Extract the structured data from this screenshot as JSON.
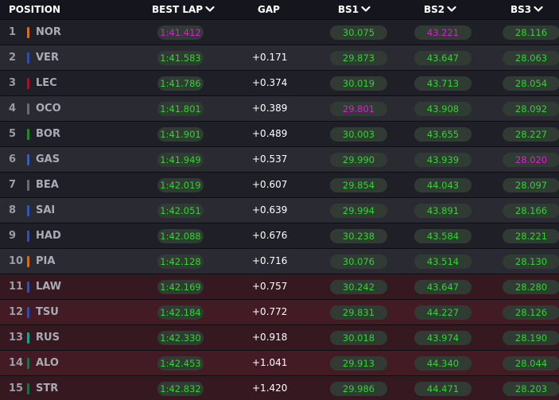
{
  "header": {
    "position": "POSITION",
    "best_lap": "BEST LAP",
    "gap": "GAP",
    "bs1": "BS1",
    "bs2": "BS2",
    "bs3": "BS3"
  },
  "colors": {
    "background": "#15151e",
    "personal_best": "#2ed62e",
    "overall_best": "#e11ad8",
    "eliminated_row": "#3a1820"
  },
  "rows": [
    {
      "pos": "1",
      "driver": "NOR",
      "team_color": "#d86d1f",
      "best_lap": "1:41.412",
      "gap": "",
      "bs1": "30.075",
      "bs2": "43.221",
      "bs3": "28.116",
      "eliminated": false,
      "purple": [
        "best_lap",
        "bs2"
      ]
    },
    {
      "pos": "2",
      "driver": "VER",
      "team_color": "#2f4fa8",
      "best_lap": "1:41.583",
      "gap": "+0.171",
      "bs1": "29.873",
      "bs2": "43.647",
      "bs3": "28.063",
      "eliminated": false,
      "purple": []
    },
    {
      "pos": "3",
      "driver": "LEC",
      "team_color": "#a1122b",
      "best_lap": "1:41.786",
      "gap": "+0.374",
      "bs1": "30.019",
      "bs2": "43.713",
      "bs3": "28.054",
      "eliminated": false,
      "purple": []
    },
    {
      "pos": "4",
      "driver": "OCO",
      "team_color": "#6a6a72",
      "best_lap": "1:41.801",
      "gap": "+0.389",
      "bs1": "29.801",
      "bs2": "43.908",
      "bs3": "28.092",
      "eliminated": false,
      "purple": [
        "bs1"
      ]
    },
    {
      "pos": "5",
      "driver": "BOR",
      "team_color": "#1f8a2e",
      "best_lap": "1:41.901",
      "gap": "+0.489",
      "bs1": "30.003",
      "bs2": "43.655",
      "bs3": "28.227",
      "eliminated": false,
      "purple": []
    },
    {
      "pos": "6",
      "driver": "GAS",
      "team_color": "#3b5fb0",
      "best_lap": "1:41.949",
      "gap": "+0.537",
      "bs1": "29.990",
      "bs2": "43.939",
      "bs3": "28.020",
      "eliminated": false,
      "purple": [
        "bs3"
      ]
    },
    {
      "pos": "7",
      "driver": "BEA",
      "team_color": "#6a6a72",
      "best_lap": "1:42.019",
      "gap": "+0.607",
      "bs1": "29.854",
      "bs2": "44.043",
      "bs3": "28.097",
      "eliminated": false,
      "purple": []
    },
    {
      "pos": "8",
      "driver": "SAI",
      "team_color": "#2f56b8",
      "best_lap": "1:42.051",
      "gap": "+0.639",
      "bs1": "29.994",
      "bs2": "43.891",
      "bs3": "28.166",
      "eliminated": false,
      "purple": []
    },
    {
      "pos": "9",
      "driver": "HAD",
      "team_color": "#3e4fa0",
      "best_lap": "1:42.088",
      "gap": "+0.676",
      "bs1": "30.238",
      "bs2": "43.584",
      "bs3": "28.221",
      "eliminated": false,
      "purple": []
    },
    {
      "pos": "10",
      "driver": "PIA",
      "team_color": "#d86d1f",
      "best_lap": "1:42.128",
      "gap": "+0.716",
      "bs1": "30.076",
      "bs2": "43.514",
      "bs3": "28.130",
      "eliminated": false,
      "purple": []
    },
    {
      "pos": "11",
      "driver": "LAW",
      "team_color": "#3e4fa0",
      "best_lap": "1:42.169",
      "gap": "+0.757",
      "bs1": "30.242",
      "bs2": "43.647",
      "bs3": "28.280",
      "eliminated": true,
      "purple": []
    },
    {
      "pos": "12",
      "driver": "TSU",
      "team_color": "#2f4fa8",
      "best_lap": "1:42.184",
      "gap": "+0.772",
      "bs1": "29.831",
      "bs2": "44.227",
      "bs3": "28.126",
      "eliminated": true,
      "purple": []
    },
    {
      "pos": "13",
      "driver": "RUS",
      "team_color": "#1f9e8a",
      "best_lap": "1:42.330",
      "gap": "+0.918",
      "bs1": "30.018",
      "bs2": "43.974",
      "bs3": "28.190",
      "eliminated": true,
      "purple": []
    },
    {
      "pos": "14",
      "driver": "ALO",
      "team_color": "#1f6e4a",
      "best_lap": "1:42.453",
      "gap": "+1.041",
      "bs1": "29.913",
      "bs2": "44.340",
      "bs3": "28.044",
      "eliminated": true,
      "purple": []
    },
    {
      "pos": "15",
      "driver": "STR",
      "team_color": "#1f6e4a",
      "best_lap": "1:42.832",
      "gap": "+1.420",
      "bs1": "29.986",
      "bs2": "44.471",
      "bs3": "28.203",
      "eliminated": true,
      "purple": []
    }
  ]
}
